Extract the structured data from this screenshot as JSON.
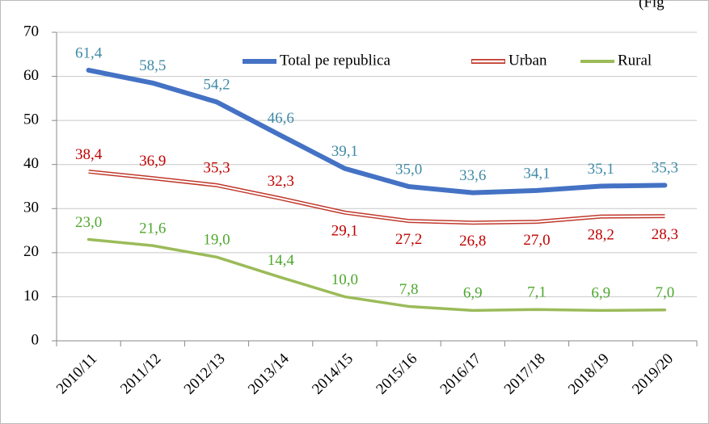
{
  "chart_data": {
    "type": "line",
    "annotation": "(Fig",
    "categories": [
      "2010/11",
      "2011/12",
      "2012/13",
      "2013/14",
      "2014/15",
      "2015/16",
      "2016/17",
      "2017/18",
      "2018/19",
      "2019/20"
    ],
    "series": [
      {
        "name": "Total pe republica",
        "color": "#4472c4",
        "label_color": "#3f8aa6",
        "values": [
          61.4,
          58.5,
          54.2,
          46.6,
          39.1,
          35.0,
          33.6,
          34.1,
          35.1,
          35.3
        ],
        "value_labels": [
          "61,4",
          "58,5",
          "54,2",
          "46,6",
          "39,1",
          "35,0",
          "33,6",
          "34,1",
          "35,1",
          "35,3"
        ]
      },
      {
        "name": "Urban",
        "color": "#c0392b",
        "label_color": "#c00000",
        "values": [
          38.4,
          36.9,
          35.3,
          32.3,
          29.1,
          27.2,
          26.8,
          27.0,
          28.2,
          28.3
        ],
        "value_labels": [
          "38,4",
          "36,9",
          "35,3",
          "32,3",
          "29,1",
          "27,2",
          "26,8",
          "27,0",
          "28,2",
          "28,3"
        ]
      },
      {
        "name": "Rural",
        "color": "#9bbb59",
        "label_color": "#4ea72e",
        "values": [
          23.0,
          21.6,
          19.0,
          14.4,
          10.0,
          7.8,
          6.9,
          7.1,
          6.9,
          7.0
        ],
        "value_labels": [
          "23,0",
          "21,6",
          "19,0",
          "14,4",
          "10,0",
          "7,8",
          "6,9",
          "7,1",
          "6,9",
          "7,0"
        ]
      }
    ],
    "ylim": [
      0,
      70
    ],
    "yticks": [
      0,
      10,
      20,
      30,
      40,
      50,
      60,
      70
    ],
    "grid": true,
    "legend": "top"
  }
}
